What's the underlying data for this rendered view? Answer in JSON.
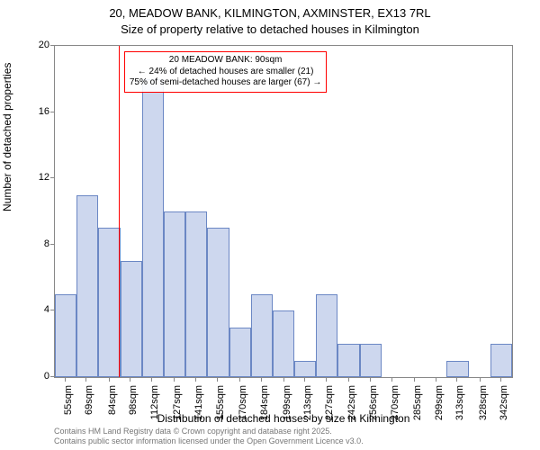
{
  "title": {
    "line1": "20, MEADOW BANK, KILMINGTON, AXMINSTER, EX13 7RL",
    "line2": "Size of property relative to detached houses in Kilmington"
  },
  "chart": {
    "type": "histogram",
    "ylabel": "Number of detached properties",
    "xlabel": "Distribution of detached houses by size in Kilmington",
    "ylim": [
      0,
      20
    ],
    "ytick_step": 4,
    "xlim": [
      48,
      349
    ],
    "x_ticks": [
      55,
      69,
      84,
      98,
      112,
      127,
      141,
      155,
      170,
      184,
      199,
      213,
      227,
      242,
      256,
      270,
      285,
      299,
      313,
      328,
      342
    ],
    "x_tick_suffix": "sqm",
    "bar_fill": "#cdd7ee",
    "bar_stroke": "#6b87c4",
    "background_color": "#ffffff",
    "axis_color": "#888888",
    "tick_fontsize": 11,
    "label_fontsize": 12,
    "title_fontsize": 13,
    "bins": [
      {
        "start": 48,
        "end": 62.33,
        "count": 5
      },
      {
        "start": 62.33,
        "end": 76.67,
        "count": 11
      },
      {
        "start": 76.67,
        "end": 91,
        "count": 9
      },
      {
        "start": 91,
        "end": 105.33,
        "count": 7
      },
      {
        "start": 105.33,
        "end": 119.67,
        "count": 18
      },
      {
        "start": 119.67,
        "end": 134,
        "count": 10
      },
      {
        "start": 134,
        "end": 148.33,
        "count": 10
      },
      {
        "start": 148.33,
        "end": 162.67,
        "count": 9
      },
      {
        "start": 162.67,
        "end": 177,
        "count": 3
      },
      {
        "start": 177,
        "end": 191.33,
        "count": 5
      },
      {
        "start": 191.33,
        "end": 205.67,
        "count": 4
      },
      {
        "start": 205.67,
        "end": 220,
        "count": 1
      },
      {
        "start": 220,
        "end": 234.33,
        "count": 5
      },
      {
        "start": 234.33,
        "end": 248.67,
        "count": 2
      },
      {
        "start": 248.67,
        "end": 263,
        "count": 2
      },
      {
        "start": 263,
        "end": 277.33,
        "count": 0
      },
      {
        "start": 277.33,
        "end": 291.67,
        "count": 0
      },
      {
        "start": 291.67,
        "end": 306,
        "count": 0
      },
      {
        "start": 306,
        "end": 320.33,
        "count": 1
      },
      {
        "start": 320.33,
        "end": 334.67,
        "count": 0
      },
      {
        "start": 334.67,
        "end": 349,
        "count": 2
      }
    ],
    "marker": {
      "value": 90,
      "color": "#ff0000",
      "line_width": 1
    },
    "annotation": {
      "line1": "20 MEADOW BANK: 90sqm",
      "line2": "← 24% of detached houses are smaller (21)",
      "line3": "75% of semi-detached houses are larger (67) →",
      "border_color": "#ff0000",
      "text_color": "#000000",
      "fontsize": 10
    }
  },
  "footer": {
    "line1": "Contains HM Land Registry data © Crown copyright and database right 2025.",
    "line2": "Contains public sector information licensed under the Open Government Licence v3.0.",
    "color": "#777777",
    "fontsize": 9
  }
}
